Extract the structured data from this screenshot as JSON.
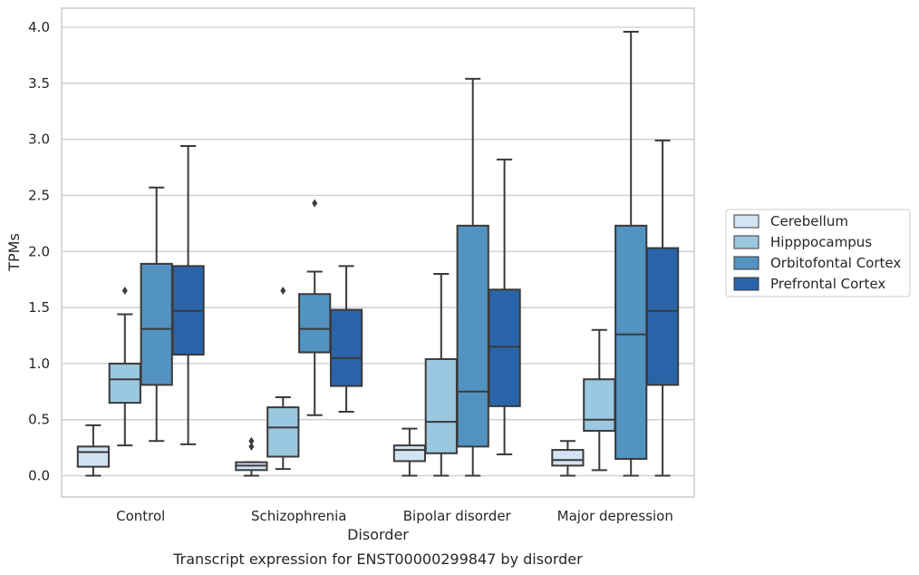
{
  "chart_data": {
    "type": "box",
    "caption": "Transcript expression for ENST00000299847 by disorder",
    "xlabel": "Disorder",
    "ylabel": "TPMs",
    "ylim": [
      -0.19,
      4.17
    ],
    "yticks": [
      0.0,
      0.5,
      1.0,
      1.5,
      2.0,
      2.5,
      3.0,
      3.5,
      4.0
    ],
    "categories": [
      "Control",
      "Schizophrenia",
      "Bipolar disorder",
      "Major depression"
    ],
    "grid": "horizontal",
    "legend": "right",
    "series": [
      {
        "name": "Cerebellum",
        "color": "#d2e3f3",
        "boxes": [
          {
            "whislo": 0.0,
            "q1": 0.08,
            "med": 0.21,
            "q3": 0.26,
            "whishi": 0.45,
            "fliers": []
          },
          {
            "whislo": 0.0,
            "q1": 0.05,
            "med": 0.09,
            "q3": 0.12,
            "whishi": 0.12,
            "fliers": [
              0.26,
              0.31
            ]
          },
          {
            "whislo": 0.0,
            "q1": 0.13,
            "med": 0.23,
            "q3": 0.27,
            "whishi": 0.42,
            "fliers": []
          },
          {
            "whislo": 0.0,
            "q1": 0.09,
            "med": 0.14,
            "q3": 0.23,
            "whishi": 0.31,
            "fliers": []
          }
        ]
      },
      {
        "name": "Hipppocampus",
        "color": "#9ac8e0",
        "boxes": [
          {
            "whislo": 0.27,
            "q1": 0.65,
            "med": 0.86,
            "q3": 1.0,
            "whishi": 1.44,
            "fliers": [
              1.65
            ]
          },
          {
            "whislo": 0.06,
            "q1": 0.17,
            "med": 0.43,
            "q3": 0.61,
            "whishi": 0.7,
            "fliers": [
              1.65
            ]
          },
          {
            "whislo": 0.0,
            "q1": 0.2,
            "med": 0.48,
            "q3": 1.04,
            "whishi": 1.8,
            "fliers": []
          },
          {
            "whislo": 0.05,
            "q1": 0.4,
            "med": 0.5,
            "q3": 0.86,
            "whishi": 1.3,
            "fliers": []
          }
        ]
      },
      {
        "name": "Orbitofontal Cortex",
        "color": "#5293c2",
        "boxes": [
          {
            "whislo": 0.31,
            "q1": 0.81,
            "med": 1.31,
            "q3": 1.89,
            "whishi": 2.57,
            "fliers": []
          },
          {
            "whislo": 0.54,
            "q1": 1.1,
            "med": 1.31,
            "q3": 1.62,
            "whishi": 1.82,
            "fliers": [
              2.43
            ]
          },
          {
            "whislo": 0.0,
            "q1": 0.26,
            "med": 0.75,
            "q3": 2.23,
            "whishi": 3.54,
            "fliers": []
          },
          {
            "whislo": 0.0,
            "q1": 0.15,
            "med": 1.26,
            "q3": 2.23,
            "whishi": 3.96,
            "fliers": []
          }
        ]
      },
      {
        "name": "Prefrontal Cortex",
        "color": "#2a64a8",
        "boxes": [
          {
            "whislo": 0.28,
            "q1": 1.08,
            "med": 1.47,
            "q3": 1.87,
            "whishi": 2.94,
            "fliers": []
          },
          {
            "whislo": 0.57,
            "q1": 0.8,
            "med": 1.05,
            "q3": 1.48,
            "whishi": 1.87,
            "fliers": []
          },
          {
            "whislo": 0.19,
            "q1": 0.62,
            "med": 1.15,
            "q3": 1.66,
            "whishi": 2.82,
            "fliers": []
          },
          {
            "whislo": 0.0,
            "q1": 0.81,
            "med": 1.47,
            "q3": 2.03,
            "whishi": 2.99,
            "fliers": []
          }
        ]
      }
    ]
  }
}
